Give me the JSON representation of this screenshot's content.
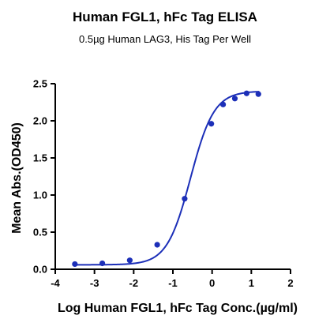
{
  "chart_data": {
    "type": "scatter",
    "title": "Human FGL1, hFc Tag ELISA",
    "subtitle": "0.5µg Human LAG3, His Tag Per Well",
    "xlabel": "Log Human FGL1, hFc Tag Conc.(µg/ml)",
    "ylabel": "Mean Abs.(OD450)",
    "xlim": [
      -4,
      2
    ],
    "ylim": [
      0,
      2.5
    ],
    "x_ticks": [
      "-4",
      "-3",
      "-2",
      "-1",
      "0",
      "1",
      "2"
    ],
    "y_ticks": [
      "0.0",
      "0.5",
      "1.0",
      "1.5",
      "2.0",
      "2.5"
    ],
    "grid": false,
    "legend": "none",
    "color": "#1c2fb8",
    "series": [
      {
        "x": [
          -3.5,
          -2.8,
          -2.1,
          -1.4,
          -0.7,
          -0.02,
          0.28,
          0.58,
          0.88,
          1.18
        ],
        "y": [
          0.07,
          0.08,
          0.12,
          0.33,
          0.95,
          1.96,
          2.22,
          2.3,
          2.37,
          2.36
        ],
        "fit": "four-parameter logistic"
      }
    ]
  }
}
